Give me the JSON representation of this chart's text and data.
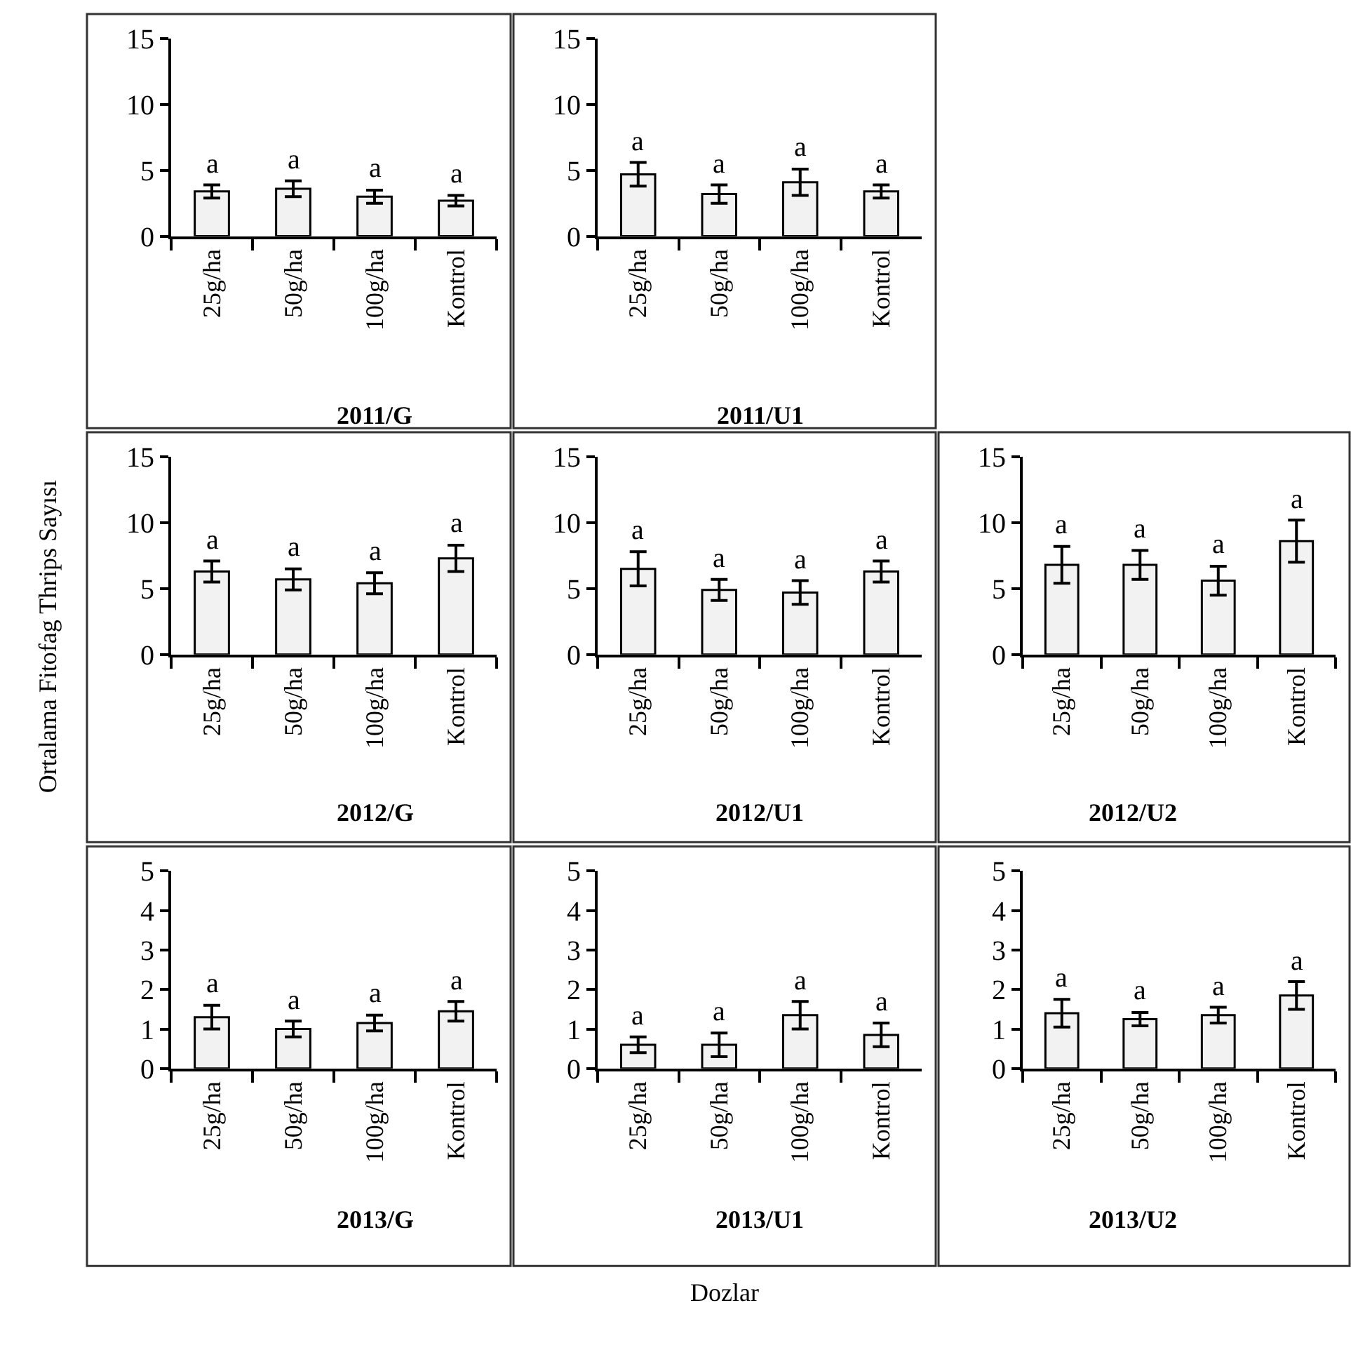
{
  "chart_data": [
    {
      "type": "bar",
      "title": "2011/G",
      "categories": [
        "25g/ha",
        "50g/ha",
        "100g/ha",
        "Kontrol"
      ],
      "values": [
        3.4,
        3.6,
        3.0,
        2.7
      ],
      "errors": [
        0.5,
        0.6,
        0.5,
        0.4
      ],
      "value_labels": [
        "a",
        "a",
        "a",
        "a"
      ],
      "color": "#f2f2f2",
      "ylim": [
        0,
        15
      ],
      "yticks": [
        0,
        5,
        10,
        15
      ]
    },
    {
      "type": "bar",
      "title": "2011/U1",
      "categories": [
        "25g/ha",
        "50g/ha",
        "100g/ha",
        "Kontrol"
      ],
      "values": [
        4.7,
        3.2,
        4.1,
        3.4
      ],
      "errors": [
        0.9,
        0.7,
        1.0,
        0.5
      ],
      "value_labels": [
        "a",
        "a",
        "a",
        "a"
      ],
      "color": "#f2f2f2",
      "ylim": [
        0,
        15
      ],
      "yticks": [
        0,
        5,
        10,
        15
      ]
    },
    {
      "type": "bar",
      "title": "2012/G",
      "ylabel": "Ortalama Fitofag Thrips Sayısı",
      "categories": [
        "25g/ha",
        "50g/ha",
        "100g/ha",
        "Kontrol"
      ],
      "values": [
        6.3,
        5.7,
        5.4,
        7.3
      ],
      "errors": [
        0.8,
        0.8,
        0.8,
        1.0
      ],
      "value_labels": [
        "a",
        "a",
        "a",
        "a"
      ],
      "color": "#f2f2f2",
      "ylim": [
        0,
        15
      ],
      "yticks": [
        0,
        5,
        10,
        15
      ]
    },
    {
      "type": "bar",
      "title": "2012/U1",
      "categories": [
        "25g/ha",
        "50g/ha",
        "100g/ha",
        "Kontrol"
      ],
      "values": [
        6.5,
        4.9,
        4.7,
        6.3
      ],
      "errors": [
        1.3,
        0.8,
        0.9,
        0.8
      ],
      "value_labels": [
        "a",
        "a",
        "a",
        "a"
      ],
      "color": "#f2f2f2",
      "ylim": [
        0,
        15
      ],
      "yticks": [
        0,
        5,
        10,
        15
      ]
    },
    {
      "type": "bar",
      "title": "2012/U2",
      "categories": [
        "25g/ha",
        "50g/ha",
        "100g/ha",
        "Kontrol"
      ],
      "values": [
        6.8,
        6.8,
        5.6,
        8.6
      ],
      "errors": [
        1.4,
        1.1,
        1.1,
        1.6
      ],
      "value_labels": [
        "a",
        "a",
        "a",
        "a"
      ],
      "color": "#f2f2f2",
      "ylim": [
        0,
        15
      ],
      "yticks": [
        0,
        5,
        10,
        15
      ]
    },
    {
      "type": "bar",
      "title": "2013/G",
      "categories": [
        "25g/ha",
        "50g/ha",
        "100g/ha",
        "Kontrol"
      ],
      "values": [
        1.3,
        1.0,
        1.15,
        1.45
      ],
      "errors": [
        0.3,
        0.2,
        0.2,
        0.25
      ],
      "value_labels": [
        "a",
        "a",
        "a",
        "a"
      ],
      "color": "#f2f2f2",
      "ylim": [
        0,
        5
      ],
      "yticks": [
        0,
        1,
        2,
        3,
        4,
        5
      ]
    },
    {
      "type": "bar",
      "title": "2013/U1",
      "xlabel": "Dozlar",
      "categories": [
        "25g/ha",
        "50g/ha",
        "100g/ha",
        "Kontrol"
      ],
      "values": [
        0.6,
        0.6,
        1.35,
        0.85
      ],
      "errors": [
        0.2,
        0.3,
        0.35,
        0.3
      ],
      "value_labels": [
        "a",
        "a",
        "a",
        "a"
      ],
      "color": "#f2f2f2",
      "ylim": [
        0,
        5
      ],
      "yticks": [
        0,
        1,
        2,
        3,
        4,
        5
      ]
    },
    {
      "type": "bar",
      "title": "2013/U2",
      "categories": [
        "25g/ha",
        "50g/ha",
        "100g/ha",
        "Kontrol"
      ],
      "values": [
        1.4,
        1.25,
        1.35,
        1.85
      ],
      "errors": [
        0.35,
        0.17,
        0.2,
        0.35
      ],
      "value_labels": [
        "a",
        "a",
        "a",
        "a"
      ],
      "color": "#f2f2f2",
      "ylim": [
        0,
        5
      ],
      "yticks": [
        0,
        1,
        2,
        3,
        4,
        5
      ]
    }
  ]
}
